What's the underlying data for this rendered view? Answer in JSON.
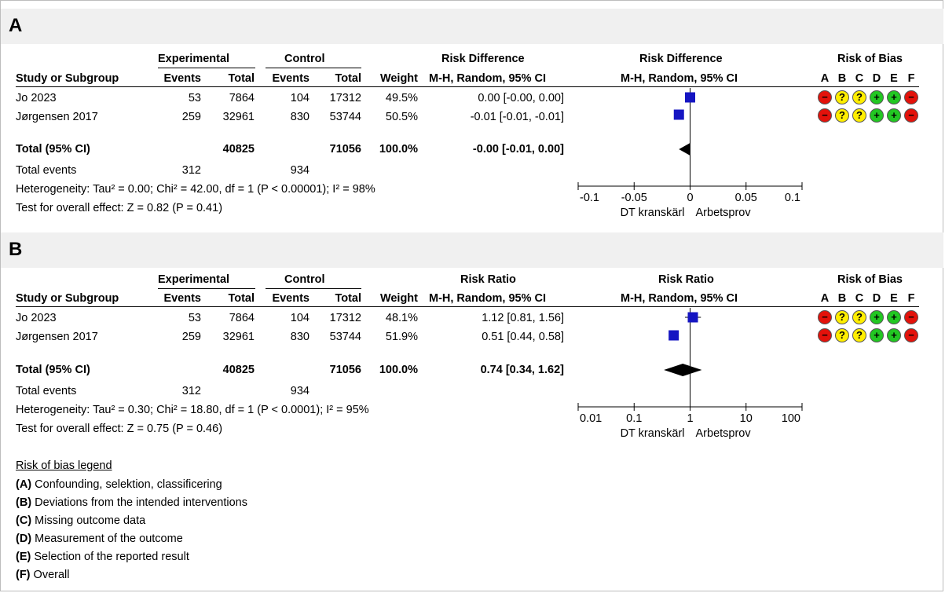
{
  "colors": {
    "band_bg": "#f0f0f0",
    "square": "#1515c2",
    "diamond": "#000000",
    "low": "#22c722",
    "some": "#ffee00",
    "high": "#e3120b"
  },
  "header": {
    "study_col": "Study or Subgroup",
    "experimental": "Experimental",
    "control": "Control",
    "events": "Events",
    "total": "Total",
    "weight": "Weight",
    "rob_title": "Risk of Bias",
    "rob_letters": [
      "A",
      "B",
      "C",
      "D",
      "E",
      "F"
    ]
  },
  "panels": [
    {
      "label": "A",
      "measure": "Risk Difference",
      "method": "M-H, Random, 95% CI",
      "studies": [
        {
          "name": "Jo 2023",
          "exp_events": "53",
          "exp_total": "7864",
          "ctl_events": "104",
          "ctl_total": "17312",
          "weight": "49.5%",
          "ci_text": "0.00 [-0.00, 0.00]",
          "rob": [
            "high",
            "some",
            "some",
            "low",
            "low",
            "high"
          ]
        },
        {
          "name": "Jørgensen 2017",
          "exp_events": "259",
          "exp_total": "32961",
          "ctl_events": "830",
          "ctl_total": "53744",
          "weight": "50.5%",
          "ci_text": "-0.01 [-0.01, -0.01]",
          "rob": [
            "high",
            "some",
            "some",
            "low",
            "low",
            "high"
          ]
        }
      ],
      "total": {
        "label": "Total (95% CI)",
        "exp_total": "40825",
        "ctl_total": "71056",
        "weight": "100.0%",
        "ci_text": "-0.00 [-0.01, 0.00]"
      },
      "total_events": {
        "label": "Total events",
        "exp": "312",
        "ctl": "934"
      },
      "heterogeneity": "Heterogeneity: Tau² = 0.00; Chi² = 42.00, df = 1 (P < 0.00001); I² = 98%",
      "overall": "Test for overall effect: Z = 0.82 (P = 0.41)",
      "favours_left": "DT kranskärl",
      "favours_right": "Arbetsprov"
    },
    {
      "label": "B",
      "measure": "Risk Ratio",
      "method": "M-H, Random, 95% CI",
      "studies": [
        {
          "name": "Jo 2023",
          "exp_events": "53",
          "exp_total": "7864",
          "ctl_events": "104",
          "ctl_total": "17312",
          "weight": "48.1%",
          "ci_text": "1.12 [0.81, 1.56]",
          "rob": [
            "high",
            "some",
            "some",
            "low",
            "low",
            "high"
          ]
        },
        {
          "name": "Jørgensen 2017",
          "exp_events": "259",
          "exp_total": "32961",
          "ctl_events": "830",
          "ctl_total": "53744",
          "weight": "51.9%",
          "ci_text": "0.51 [0.44, 0.58]",
          "rob": [
            "high",
            "some",
            "some",
            "low",
            "low",
            "high"
          ]
        }
      ],
      "total": {
        "label": "Total (95% CI)",
        "exp_total": "40825",
        "ctl_total": "71056",
        "weight": "100.0%",
        "ci_text": "0.74 [0.34, 1.62]"
      },
      "total_events": {
        "label": "Total events",
        "exp": "312",
        "ctl": "934"
      },
      "heterogeneity": "Heterogeneity: Tau² = 0.30; Chi² = 18.80, df = 1 (P < 0.0001); I² = 95%",
      "overall": "Test for overall effect: Z = 0.75 (P = 0.46)",
      "favours_left": "DT kranskärl",
      "favours_right": "Arbetsprov"
    }
  ],
  "legend": {
    "title": "Risk of bias legend",
    "items": [
      {
        "letter": "(A)",
        "text": " Confounding, selektion, classificering"
      },
      {
        "letter": "(B)",
        "text": " Deviations from the intended interventions"
      },
      {
        "letter": "(C)",
        "text": " Missing outcome data"
      },
      {
        "letter": "(D)",
        "text": " Measurement of the outcome"
      },
      {
        "letter": "(E)",
        "text": " Selection of the reported result"
      },
      {
        "letter": "(F)",
        "text": " Overall"
      }
    ]
  },
  "chart_data": [
    {
      "type": "scatter",
      "scale": "linear",
      "xlim": [
        -0.1,
        0.1
      ],
      "ticks": [
        "-0.1",
        "-0.05",
        "0",
        "0.05",
        "0.1"
      ],
      "tick_values": [
        -0.1,
        -0.05,
        0,
        0.05,
        0.1
      ],
      "null_value": 0,
      "points": [
        {
          "study": "Jo 2023",
          "est": 0.0,
          "lo": -0.0,
          "hi": 0.0,
          "weight": 49.5
        },
        {
          "study": "Jørgensen 2017",
          "est": -0.01,
          "lo": -0.01,
          "hi": -0.01,
          "weight": 50.5
        }
      ],
      "pooled": {
        "est": -0.0,
        "lo": -0.01,
        "hi": 0.0
      }
    },
    {
      "type": "scatter",
      "scale": "log",
      "xlim": [
        0.01,
        100
      ],
      "ticks": [
        "0.01",
        "0.1",
        "1",
        "10",
        "100"
      ],
      "tick_values": [
        0.01,
        0.1,
        1,
        10,
        100
      ],
      "null_value": 1,
      "points": [
        {
          "study": "Jo 2023",
          "est": 1.12,
          "lo": 0.81,
          "hi": 1.56,
          "weight": 48.1
        },
        {
          "study": "Jørgensen 2017",
          "est": 0.51,
          "lo": 0.44,
          "hi": 0.58,
          "weight": 51.9
        }
      ],
      "pooled": {
        "est": 0.74,
        "lo": 0.34,
        "hi": 1.62
      }
    }
  ]
}
